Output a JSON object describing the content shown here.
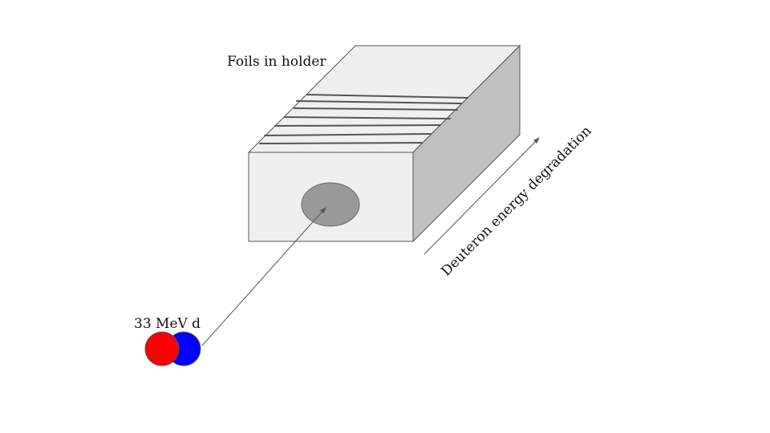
{
  "labels": {
    "holder": "Foils in holder",
    "beam": "33 MeV d",
    "degradation": "Deuteron energy degradation"
  },
  "colors": {
    "front_face": "#efefef",
    "top_face": "#efefef",
    "side_face": "#c0c0c0",
    "edge": "#555555",
    "foil_line": "#555555",
    "beam_spot": "#999999",
    "proton": "#ff0000",
    "neutron": "#0000ff",
    "arrow": "#555555"
  }
}
